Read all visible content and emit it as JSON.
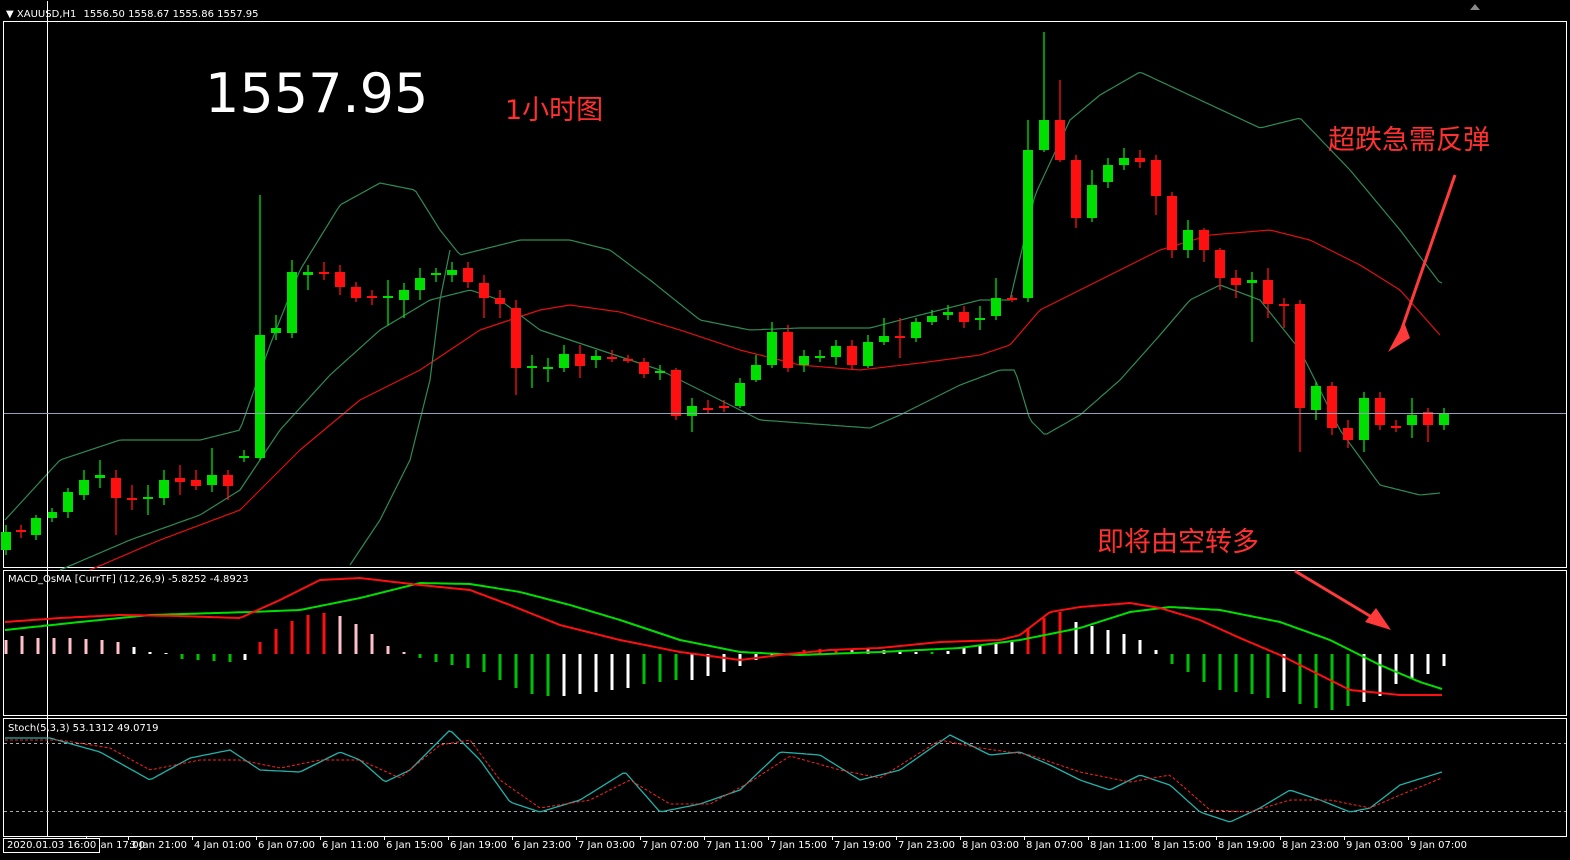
{
  "header": {
    "symbol_tf": "XAUUSD,H1",
    "ohlc": "1556.50 1558.67 1555.86 1557.95"
  },
  "main_panel": {
    "big_price": "1557.95",
    "timeframe_note": "1小时图",
    "note_oversold": "超跌急需反弹",
    "note_turn": "即将由空转多",
    "colors": {
      "bull": "#00e000",
      "bear": "#ff1010",
      "bands": "#2e8b57",
      "mid_ma": "#e01010",
      "arrow": "#ff3a3a"
    }
  },
  "macd_panel": {
    "label": "MACD_OsMA [CurrTF] (12,26,9) -5.8252 -4.8923",
    "colors": {
      "signal": "#00e000",
      "macd": "#ff1010"
    }
  },
  "stoch_panel": {
    "label": "Stoch(5,3,3) 53.1312 49.0719",
    "colors": {
      "main": "#20b2aa",
      "signal": "#ff2020"
    }
  },
  "time_axis": {
    "cursor_date": "2020.01.03 16:00",
    "labels": [
      "3 Jan 17:00",
      "3 Jan 21:00",
      "4 Jan 01:00",
      "6 Jan 07:00",
      "6 Jan 11:00",
      "6 Jan 15:00",
      "6 Jan 19:00",
      "6 Jan 23:00",
      "7 Jan 03:00",
      "7 Jan 07:00",
      "7 Jan 11:00",
      "7 Jan 15:00",
      "7 Jan 19:00",
      "7 Jan 23:00",
      "8 Jan 03:00",
      "8 Jan 07:00",
      "8 Jan 11:00",
      "8 Jan 15:00",
      "8 Jan 19:00",
      "8 Jan 23:00",
      "9 Jan 03:00",
      "9 Jan 07:00"
    ]
  }
}
